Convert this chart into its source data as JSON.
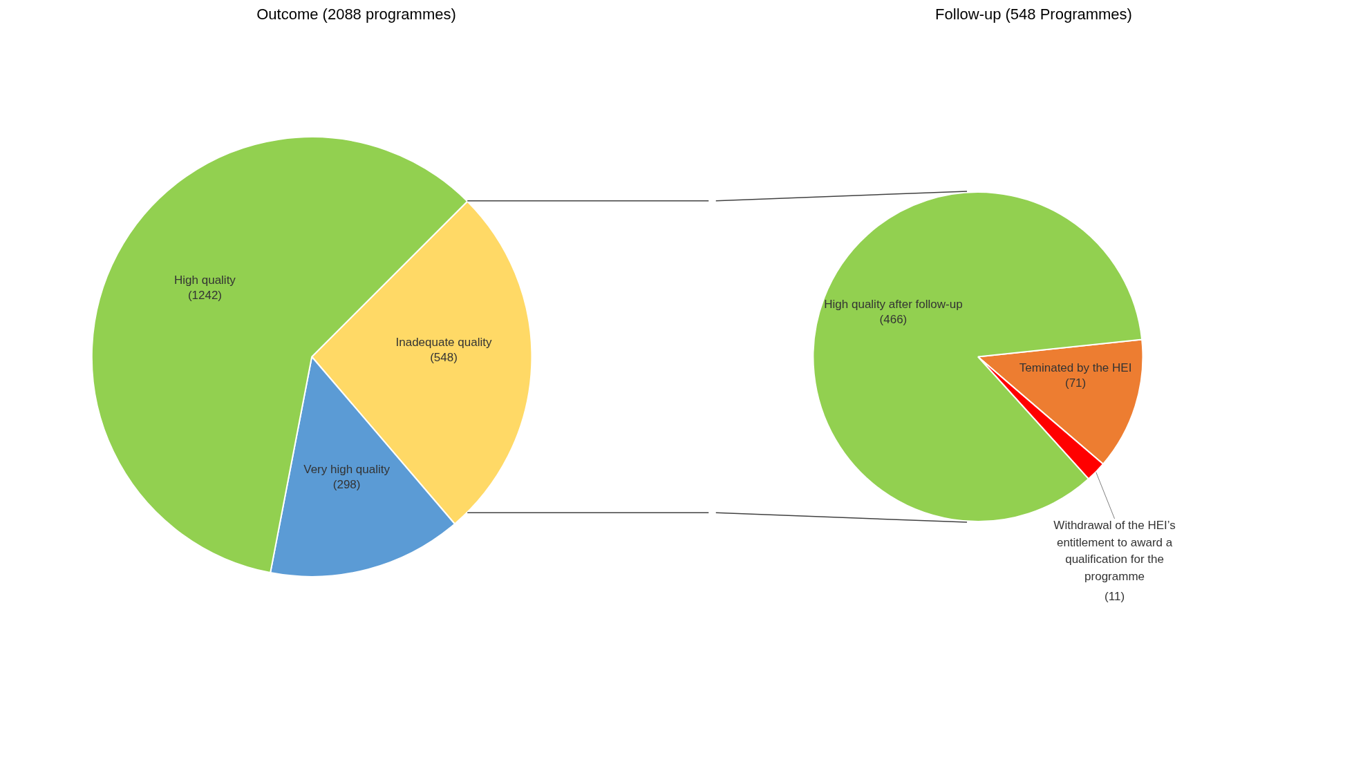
{
  "chart_data": [
    {
      "type": "pie",
      "title": "Outcome (2088 programmes)",
      "categories": [
        "Inadequate quality",
        "Very high quality",
        "High quality"
      ],
      "values": [
        548,
        298,
        1242
      ],
      "colors": [
        "#ffd966",
        "#5b9bd5",
        "#92d050"
      ],
      "value_labels": [
        "(548)",
        "(298)",
        "(1242)"
      ]
    },
    {
      "type": "pie",
      "title": "Follow-up (548 Programmes)",
      "categories": [
        "Teminated by the HEI",
        "Withdrawal of the HEI’s entitlement to award a qualification for the programme",
        "High quality after follow-up"
      ],
      "values": [
        71,
        11,
        466
      ],
      "colors": [
        "#ed7d31",
        "#ff0000",
        "#92d050"
      ],
      "value_labels": [
        "(71)",
        "(11)",
        "(466)"
      ]
    }
  ]
}
